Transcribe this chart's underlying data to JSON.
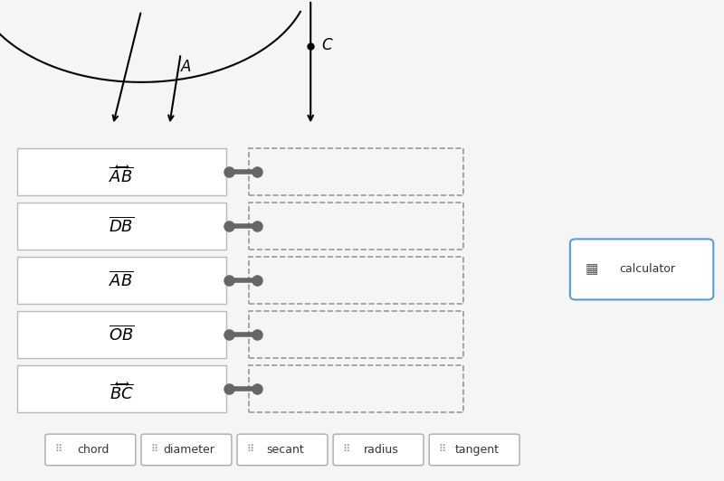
{
  "bg_color": "#f5f5f5",
  "white": "#ffffff",
  "gray_border": "#cccccc",
  "dark_gray": "#555555",
  "dashed_border": "#999999",
  "blue_border": "#5b9bd5",
  "rows": [
    {
      "label": "AB",
      "over": true,
      "arrow": true
    },
    {
      "label": "DB",
      "over": true,
      "arrow": false
    },
    {
      "label": "AB",
      "over": true,
      "arrow": false
    },
    {
      "label": "OB",
      "over": true,
      "arrow": false
    },
    {
      "label": "BC",
      "over": true,
      "arrow": true
    }
  ],
  "answer_choices": [
    "chord",
    "diameter",
    "secant",
    "radius",
    "tangent"
  ],
  "calculator_label": "calculator",
  "top_panel_bg": "#ffffff",
  "bottom_panel_bg": "#f0f0f0"
}
